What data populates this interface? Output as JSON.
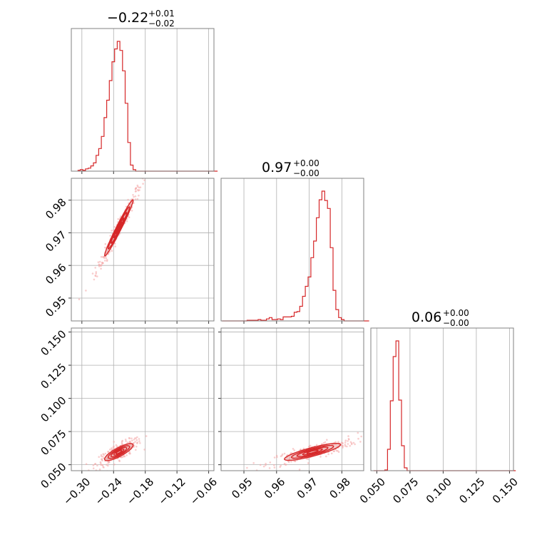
{
  "colors": {
    "primary": "#d62728",
    "light": "#f4a6a6",
    "frame": "#808080",
    "grid": "#b0b0b0"
  },
  "params": [
    {
      "name": "",
      "median": "−0.22",
      "upper": "+0.01",
      "lower": "−0.02"
    },
    {
      "name": "",
      "median": "0.97",
      "upper": "+0.00",
      "lower": "−0.00"
    },
    {
      "name": "",
      "median": "0.06",
      "upper": "+0.00",
      "lower": "−0.00"
    }
  ],
  "chart_data": {
    "type": "corner",
    "axes": [
      {
        "range": [
          -0.32,
          -0.05
        ],
        "ticks": [
          -0.3,
          -0.24,
          -0.18,
          -0.12,
          -0.06
        ],
        "tick_labels": [
          "−0.30",
          "−0.24",
          "−0.18",
          "−0.12",
          "−0.06"
        ]
      },
      {
        "range": [
          0.943,
          0.9867
        ],
        "ticks": [
          0.95,
          0.96,
          0.97,
          0.98
        ],
        "tick_labels": [
          "0.95",
          "0.96",
          "0.97",
          "0.98"
        ]
      },
      {
        "range": [
          0.0455,
          0.153
        ],
        "ticks": [
          0.05,
          0.075,
          0.1,
          0.125,
          0.15
        ],
        "tick_labels": [
          "0.050",
          "0.075",
          "0.100",
          "0.125",
          "0.150"
        ]
      }
    ],
    "histograms": [
      {
        "param": 0,
        "bin_start": -0.3081,
        "bin_width": 0.005,
        "ymax": 172,
        "counts": [
          1,
          2,
          1,
          3,
          4,
          7,
          11,
          21,
          30,
          46,
          71,
          94,
          120,
          145,
          162,
          172,
          160,
          133,
          90,
          38,
          8,
          2,
          0,
          0,
          0,
          0,
          0,
          0,
          0,
          0,
          0,
          0,
          0,
          0,
          0,
          0,
          0,
          0,
          0,
          0,
          0,
          0,
          0,
          0,
          0,
          0,
          0,
          0,
          0,
          0,
          0,
          0,
          0
        ]
      },
      {
        "param": 1,
        "bin_start": 0.9433,
        "bin_width": 0.00085,
        "ymax": 195,
        "counts": [
          0,
          0,
          0,
          0,
          0,
          0,
          0,
          0,
          0,
          1,
          1,
          1,
          1,
          2,
          1,
          1,
          3,
          5,
          2,
          2,
          3,
          2,
          6,
          6,
          6,
          7,
          13,
          14,
          22,
          37,
          52,
          66,
          95,
          120,
          155,
          182,
          195,
          181,
          169,
          110,
          46,
          17,
          5,
          2,
          0,
          0,
          0,
          0,
          0,
          0,
          0,
          0,
          0
        ]
      },
      {
        "param": 2,
        "bin_start": 0.0476,
        "bin_width": 0.0021,
        "ymax": 182,
        "counts": [
          0,
          0,
          0,
          0,
          1,
          30,
          98,
          160,
          182,
          99,
          35,
          4,
          0,
          0,
          0,
          0,
          0,
          0,
          0,
          0,
          0,
          0,
          0,
          0,
          0,
          0,
          0,
          0,
          0,
          0,
          0,
          0,
          0,
          0,
          0,
          0,
          0,
          0,
          0,
          0,
          0,
          0,
          0,
          0,
          0,
          0,
          0,
          0,
          0,
          0,
          0
        ]
      }
    ],
    "pairs": [
      {
        "x": 0,
        "y": 1,
        "mean": [
          -0.23,
          0.9715
        ],
        "sd": [
          0.0135,
          0.0043
        ],
        "corr": 0.98,
        "scatter_x_range": [
          -0.305,
          -0.175
        ]
      },
      {
        "x": 0,
        "y": 2,
        "mean": [
          -0.23,
          0.0595
        ],
        "sd": [
          0.0135,
          0.0032
        ],
        "corr": 0.82,
        "scatter_x_range": [
          -0.31,
          -0.17
        ]
      },
      {
        "x": 1,
        "y": 2,
        "mean": [
          0.971,
          0.0597
        ],
        "sd": [
          0.0043,
          0.0032
        ],
        "corr": 0.85,
        "scatter_x_range": [
          0.955,
          0.985
        ]
      }
    ]
  }
}
